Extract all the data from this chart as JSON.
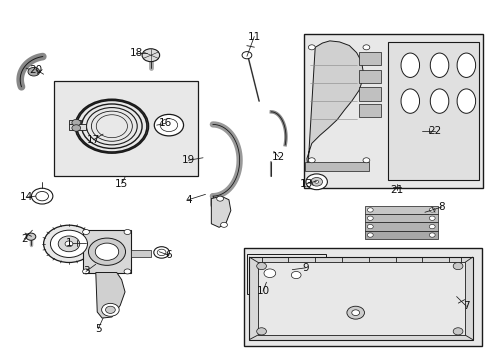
{
  "bg_color": "#ffffff",
  "fig_width": 4.89,
  "fig_height": 3.6,
  "dpi": 100,
  "lc": "#1a1a1a",
  "fc_box": "#e8e8e8",
  "fc_part": "#ffffff",
  "label_fs": 7.5,
  "label_positions": {
    "1": [
      0.14,
      0.325,
      0.175,
      0.325
    ],
    "2": [
      0.048,
      0.335,
      0.065,
      0.36
    ],
    "3": [
      0.175,
      0.245,
      0.195,
      0.265
    ],
    "4": [
      0.385,
      0.445,
      0.42,
      0.46
    ],
    "5": [
      0.2,
      0.085,
      0.21,
      0.115
    ],
    "6": [
      0.345,
      0.29,
      0.325,
      0.3
    ],
    "7": [
      0.955,
      0.148,
      0.935,
      0.175
    ],
    "8": [
      0.905,
      0.425,
      0.87,
      0.41
    ],
    "9": [
      0.625,
      0.255,
      0.598,
      0.25
    ],
    "10": [
      0.538,
      0.19,
      0.545,
      0.215
    ],
    "11": [
      0.52,
      0.9,
      0.505,
      0.845
    ],
    "12": [
      0.57,
      0.565,
      0.56,
      0.58
    ],
    "13": [
      0.628,
      0.49,
      0.648,
      0.497
    ],
    "14": [
      0.052,
      0.452,
      0.072,
      0.455
    ],
    "15": [
      0.248,
      0.49,
      0.255,
      0.508
    ],
    "16": [
      0.338,
      0.658,
      0.32,
      0.653
    ],
    "17": [
      0.19,
      0.612,
      0.21,
      0.628
    ],
    "18": [
      0.278,
      0.855,
      0.3,
      0.855
    ],
    "19": [
      0.385,
      0.555,
      0.415,
      0.562
    ],
    "20": [
      0.072,
      0.808,
      0.088,
      0.795
    ],
    "21": [
      0.812,
      0.472,
      0.812,
      0.49
    ],
    "22": [
      0.89,
      0.638,
      0.865,
      0.638
    ]
  }
}
